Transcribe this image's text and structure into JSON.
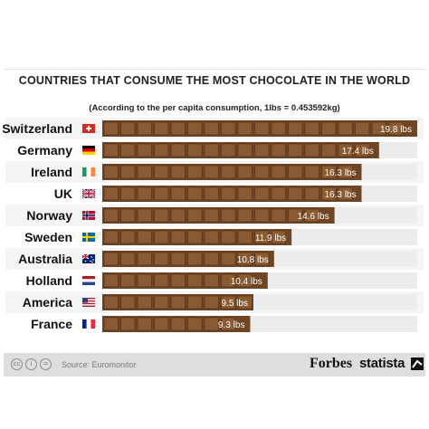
{
  "title": "COUNTRIES THAT CONSUME THE MOST CHOCOLATE IN THE WORLD",
  "subtitle": "(According to the per capita consumption, 1lbs = 0.453592kg)",
  "footer": {
    "source": "Source: Euromonitor",
    "brand_forbes": "Forbes",
    "brand_statista": "statista",
    "license_icons": [
      "cc-icon",
      "info-icon",
      "equals-icon"
    ]
  },
  "colors": {
    "bar": "#6f4524",
    "bar_highlight": "#8a5a33",
    "bar_groove": "#4e2d14",
    "track": "#ececec",
    "row_alt": "#f5f5f5"
  },
  "chart_data": {
    "type": "bar",
    "orientation": "horizontal",
    "title": "COUNTRIES THAT CONSUME THE MOST CHOCOLATE IN THE WORLD",
    "subtitle": "(According to the per capita consumption, 1lbs = 0.453592kg)",
    "unit": "lbs",
    "xlim": [
      0,
      19.8
    ],
    "categories": [
      "Switzerland",
      "Germany",
      "Ireland",
      "UK",
      "Norway",
      "Sweden",
      "Australia",
      "Holland",
      "America",
      "France"
    ],
    "flags": [
      "switzerland-flag",
      "germany-flag",
      "ireland-flag",
      "uk-flag",
      "norway-flag",
      "sweden-flag",
      "australia-flag",
      "netherlands-flag",
      "usa-flag",
      "france-flag"
    ],
    "values": [
      19.8,
      17.4,
      16.3,
      16.3,
      14.6,
      11.9,
      10.8,
      10.4,
      9.5,
      9.3
    ],
    "value_labels": [
      "19.8 lbs",
      "17.4 lbs",
      "16.3 lbs",
      "16.3 lbs",
      "14.6 lbs",
      "11.9 lbs",
      "10.8 lbs",
      "10.4 lbs",
      "9.5 lbs",
      "9.3 lbs"
    ]
  }
}
